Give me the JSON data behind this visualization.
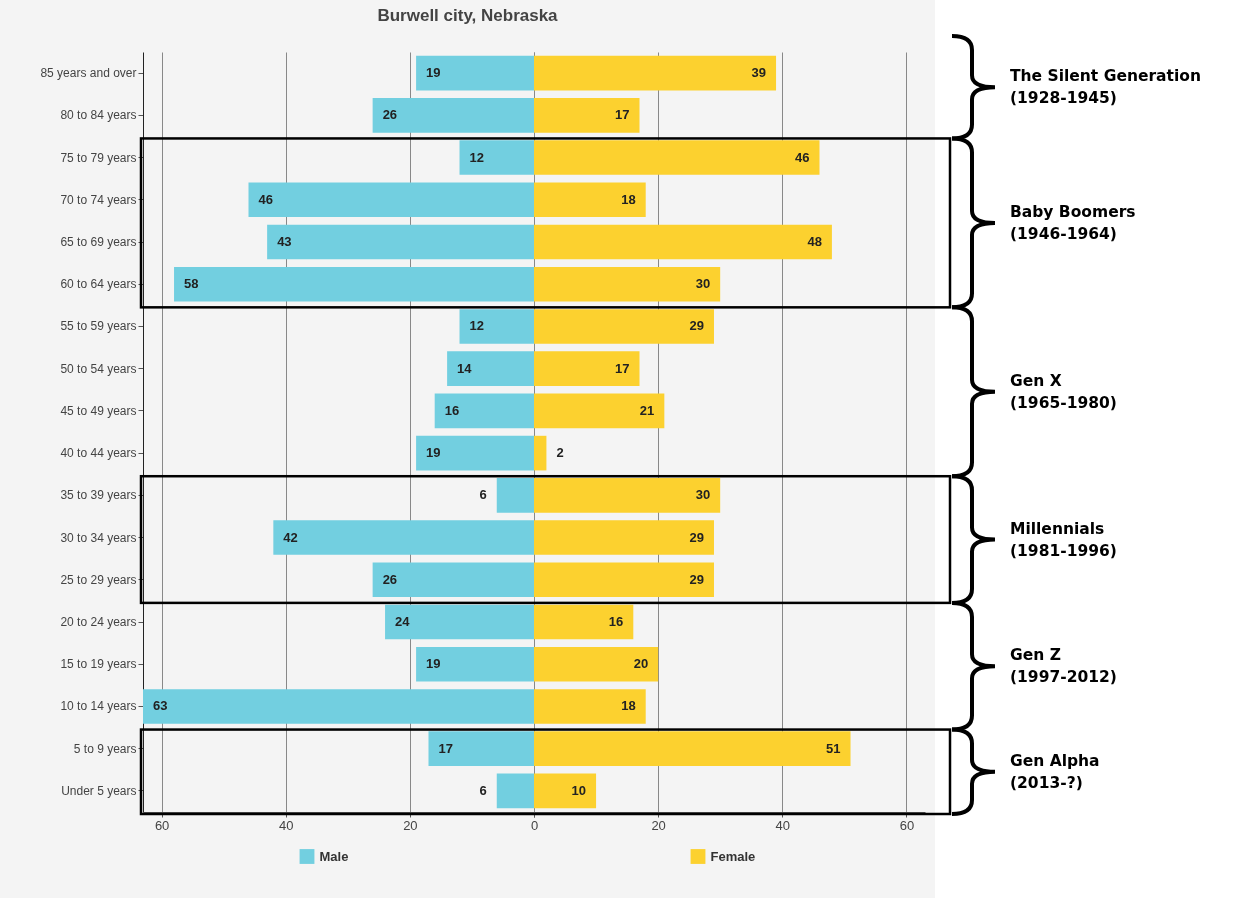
{
  "chart_data": [
    {
      "type": "bar",
      "title": "Burwell city, Nebraska",
      "orientation": "horizontal",
      "categories": [
        "85 years and over",
        "80 to 84 years",
        "75 to 79 years",
        "70 to 74 years",
        "65 to 69 years",
        "60 to 64 years",
        "55 to 59 years",
        "50 to 54 years",
        "45 to 49 years",
        "40 to 44 years",
        "35 to 39 years",
        "30 to 34 years",
        "25 to 29 years",
        "20 to 24 years",
        "15 to 19 years",
        "10 to 14 years",
        "5 to 9 years",
        "Under 5 years"
      ],
      "series": [
        {
          "name": "Male",
          "color": "#72cfe0",
          "values": [
            19,
            26,
            12,
            46,
            43,
            58,
            12,
            14,
            16,
            19,
            6,
            42,
            26,
            24,
            19,
            63,
            17,
            6
          ]
        }
      ],
      "xlim": [
        63,
        0
      ],
      "xticks": [
        60,
        40,
        20,
        0
      ],
      "grid": "x",
      "legend": "bottom",
      "data_labels": true
    },
    {
      "type": "bar",
      "orientation": "horizontal",
      "categories": [
        null,
        null,
        null,
        null,
        null,
        null,
        null,
        null,
        null,
        null,
        null,
        null,
        null,
        null,
        null,
        null,
        null,
        null
      ],
      "series": [
        {
          "name": "Female",
          "color": "#fcd12f",
          "values": [
            39,
            17,
            46,
            18,
            48,
            30,
            29,
            17,
            21,
            2,
            30,
            29,
            29,
            16,
            20,
            18,
            51,
            10
          ]
        }
      ],
      "xlim": [
        0,
        63
      ],
      "xticks": [
        {
          "value": 0,
          "label": null
        },
        20,
        40,
        60
      ],
      "grid": "x",
      "legend": "bottom",
      "data_labels": true,
      "tick_labels": "x",
      "annotations": [
        "The Silent Generation\n(1928-1945)",
        "Baby Boomers\n(1946-1964)",
        "Gen X\n(1965-1980)",
        "Millennials\n(1981-1996)",
        "Gen Z\n(1997-2012)",
        "Gen Alpha\n(2013-?)"
      ]
    }
  ]
}
